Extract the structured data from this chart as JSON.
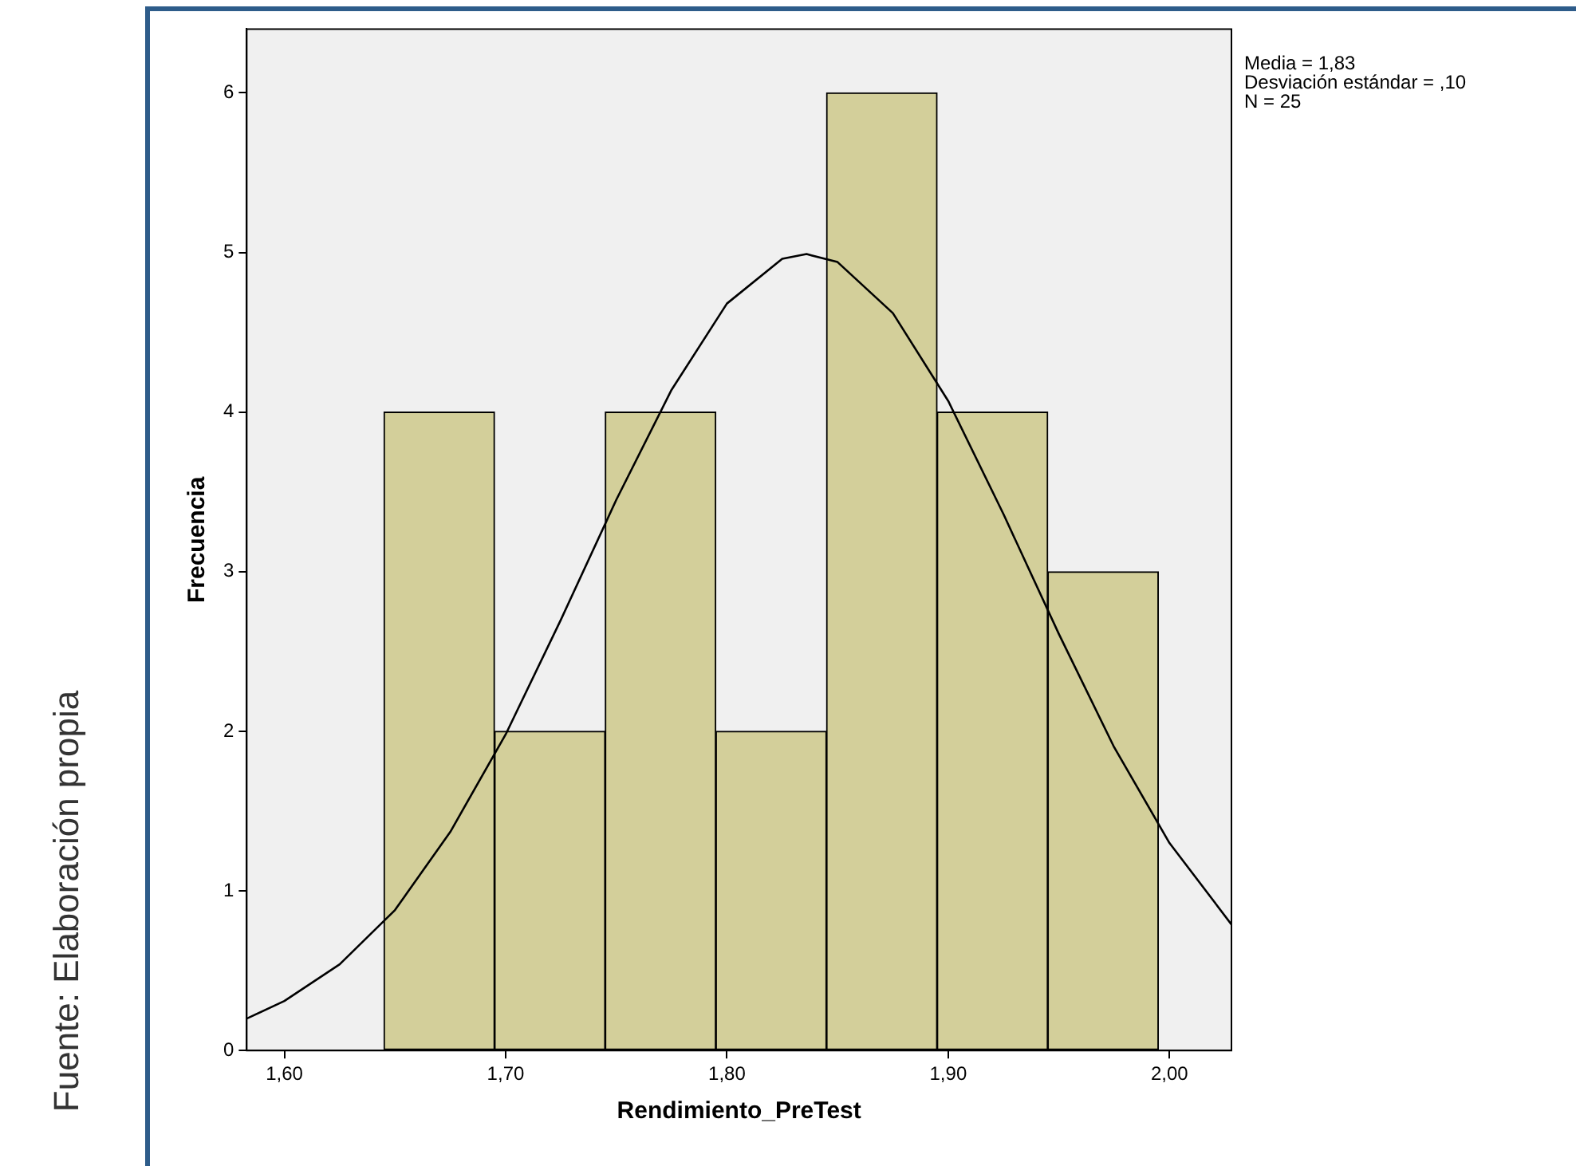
{
  "chart_data": {
    "type": "histogram",
    "xlabel": "Rendimiento_PreTest",
    "ylabel": "Frecuencia",
    "bins": [
      1.645,
      1.695,
      1.745,
      1.795,
      1.845,
      1.895,
      1.945,
      1.995
    ],
    "values": [
      4,
      2,
      4,
      2,
      6,
      4,
      3
    ],
    "color": "#d3cf9a",
    "xlim": [
      1.583,
      2.028
    ],
    "xticks": [
      {
        "value": 1.6,
        "label": "1,60"
      },
      {
        "value": 1.7,
        "label": "1,70"
      },
      {
        "value": 1.8,
        "label": "1,80"
      },
      {
        "value": 1.9,
        "label": "1,90"
      },
      {
        "value": 2.0,
        "label": "2,00"
      }
    ],
    "ylim": [
      0,
      6.4
    ],
    "yticks": [
      0,
      1,
      2,
      3,
      4,
      5,
      6
    ],
    "grid": false,
    "legend": false,
    "marker": "none",
    "line_style": "solid",
    "series": [
      {
        "type": "line",
        "color": "#000000",
        "x": [
          1.583,
          1.6,
          1.625,
          1.65,
          1.675,
          1.7,
          1.725,
          1.75,
          1.775,
          1.8,
          1.825,
          1.836,
          1.85,
          1.875,
          1.9,
          1.925,
          1.95,
          1.975,
          2.0,
          2.028
        ],
        "values": [
          0.2,
          0.31,
          0.54,
          0.88,
          1.37,
          1.98,
          2.7,
          3.45,
          4.14,
          4.68,
          4.96,
          4.99,
          4.94,
          4.62,
          4.07,
          3.36,
          2.61,
          1.9,
          1.3,
          0.79
        ]
      }
    ],
    "annotations": [
      "Media = 1,83",
      "Desviación estándar = ,10",
      "N = 25",
      "Fuente: Elaboración propia"
    ]
  }
}
